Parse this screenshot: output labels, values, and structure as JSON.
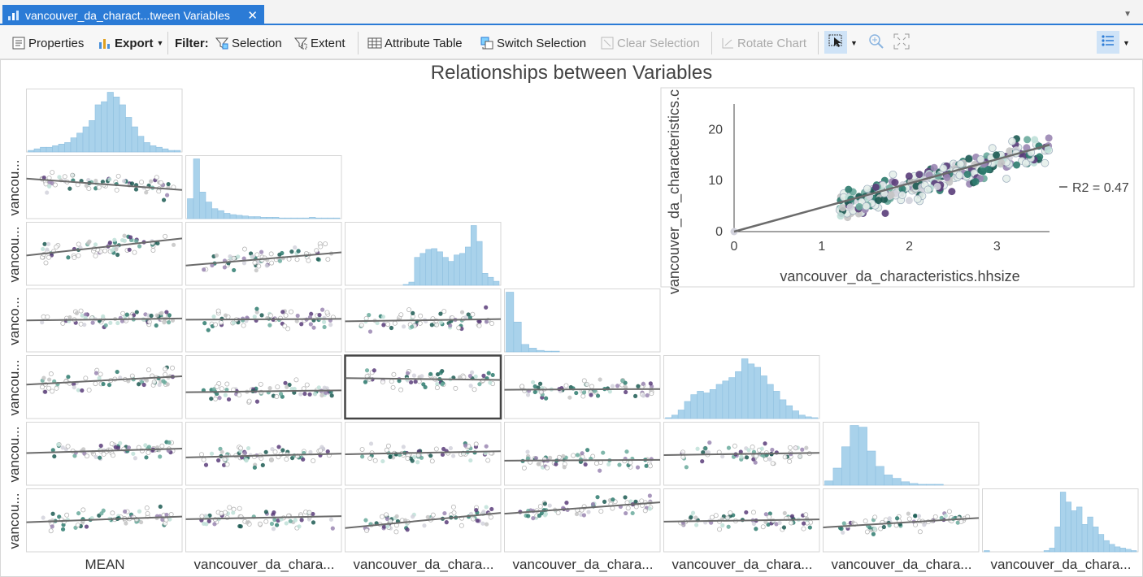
{
  "tab": {
    "title": "vancouver_da_charact...tween Variables",
    "close": "✕"
  },
  "toolbar": {
    "properties": "Properties",
    "export": "Export",
    "filter_label": "Filter:",
    "selection": "Selection",
    "extent": "Extent",
    "attribute_table": "Attribute Table",
    "switch_selection": "Switch Selection",
    "clear_selection": "Clear Selection",
    "rotate_chart": "Rotate Chart"
  },
  "colors": {
    "accent": "#2b7bd6",
    "histogram": "#a9d2eb",
    "trend": "#6b6b6b",
    "points": [
      "#d2d2dc",
      "#9a86b2",
      "#5a3d7a",
      "#6aaa9c",
      "#2e7b6e",
      "#1c5a52",
      "#bfe0d8",
      "#c4c4c4"
    ]
  },
  "chart_data": {
    "type": "scatter",
    "title": "Relationships between Variables",
    "variables": [
      "MEAN",
      "vancouver_da_chara...",
      "vancouver_da_chara...",
      "vancouver_da_chara...",
      "vancouver_da_chara...",
      "vancouver_da_chara...",
      "vancouver_da_chara..."
    ],
    "row_labels": [
      "vancou...",
      "vancou...",
      "vanco...",
      "vancou...",
      "vancou...",
      "vancou..."
    ],
    "selected_cell": {
      "row": 4,
      "col": 2
    },
    "trend_lines": [
      [
        [
          -0.3,
          0.3
        ]
      ],
      [
        [
          0.45,
          0.72
        ],
        [
          0.35,
          -0.55
        ]
      ],
      [
        [
          0.05,
          0.1
        ],
        [
          0.02,
          0.12
        ],
        [
          0.06,
          0.02
        ]
      ],
      [
        [
          0.22,
          0.7
        ],
        [
          0.05,
          -0.45
        ],
        [
          -0.05,
          0.85
        ],
        [
          0.02,
          -0.25
        ]
      ],
      [
        [
          0.12,
          0.3
        ],
        [
          0.1,
          -0.2
        ],
        [
          0.08,
          0.1
        ],
        [
          0.02,
          -0.7
        ],
        [
          0.06,
          -0.03
        ]
      ],
      [
        [
          0.15,
          0.1
        ],
        [
          0.08,
          0.28
        ],
        [
          0.4,
          -0.02
        ],
        [
          0.3,
          1.3
        ],
        [
          0.06,
          -0.02
        ],
        [
          0.25,
          -0.25
        ]
      ]
    ],
    "histograms": [
      [
        1,
        2,
        3,
        3,
        4,
        5,
        6,
        9,
        12,
        16,
        20,
        30,
        32,
        38,
        35,
        30,
        22,
        16,
        10,
        6,
        4,
        3,
        2,
        1,
        1
      ],
      [
        30,
        90,
        40,
        25,
        15,
        12,
        8,
        6,
        5,
        4,
        3,
        3,
        2,
        2,
        2,
        1,
        1,
        1,
        1,
        1,
        2,
        1,
        1,
        1,
        1
      ],
      [
        0,
        0,
        0,
        0,
        0,
        0,
        0,
        0,
        0,
        0,
        1,
        4,
        35,
        40,
        45,
        46,
        42,
        35,
        30,
        38,
        40,
        48,
        75,
        55,
        15,
        10,
        5
      ],
      [
        80,
        40,
        10,
        5,
        2,
        1,
        1,
        0,
        0,
        0,
        0,
        0,
        0,
        0,
        0,
        0,
        0,
        0,
        0,
        0
      ],
      [
        1,
        4,
        10,
        20,
        28,
        32,
        30,
        34,
        40,
        44,
        48,
        55,
        70,
        64,
        60,
        50,
        40,
        32,
        22,
        15,
        9,
        4,
        2,
        1
      ],
      [
        5,
        20,
        45,
        70,
        68,
        40,
        22,
        12,
        8,
        4,
        2,
        1,
        1,
        1,
        0,
        0,
        0,
        0
      ],
      [
        1,
        0,
        0,
        0,
        0,
        0,
        0,
        0,
        0,
        0,
        0,
        1,
        3,
        20,
        48,
        40,
        33,
        36,
        22,
        28,
        20,
        14,
        9,
        6,
        4,
        3,
        2,
        1
      ]
    ],
    "detail": {
      "xlabel": "vancouver_da_characteristics.hhsize",
      "ylabel": "vancouver_da_characteristics.c",
      "xlim": [
        0,
        3.6
      ],
      "ylim": [
        0,
        25
      ],
      "xticks": [
        0,
        1,
        2,
        3
      ],
      "yticks": [
        0,
        10,
        20
      ],
      "trend": [
        [
          0,
          0
        ],
        [
          3.6,
          17
        ]
      ],
      "legend": "R2 = 0.47"
    }
  }
}
